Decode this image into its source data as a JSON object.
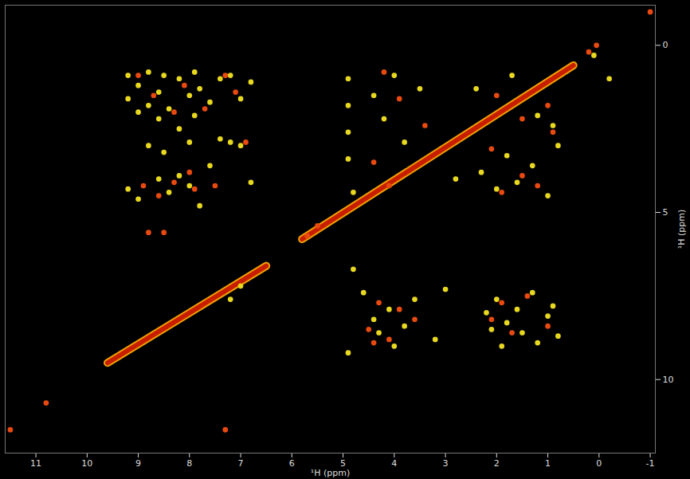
{
  "chart_data": {
    "type": "scatter",
    "x_label": "¹H (ppm)",
    "y_label": "¹H (ppm)",
    "xlim": [
      11.6,
      -1.1
    ],
    "ylim": [
      12.2,
      -1.2
    ],
    "xticks": [
      11,
      10,
      9,
      8,
      7,
      6,
      5,
      4,
      3,
      2,
      1,
      0,
      -1
    ],
    "yticks": [
      0,
      5,
      10
    ],
    "grid": false,
    "series": [
      {
        "type": "line",
        "color": "#c81e00",
        "line_style": "solid",
        "x": [
          9.6,
          6.5,
          null,
          5.8,
          0.5
        ],
        "values": [
          9.5,
          6.6,
          null,
          5.8,
          0.6
        ]
      },
      {
        "type": "scatter",
        "color": "#e8d820",
        "marker": "circle",
        "x": [
          9.2,
          9.2,
          9.2,
          9.0,
          9.0,
          9.0,
          8.8,
          8.8,
          8.8,
          8.6,
          8.6,
          8.6,
          8.5,
          8.5,
          8.4,
          8.4,
          8.2,
          8.2,
          8.2,
          8.0,
          8.0,
          8.0,
          7.9,
          7.9,
          7.8,
          7.8,
          7.6,
          7.6,
          7.4,
          7.4,
          7.2,
          7.2,
          7.0,
          7.0,
          6.8,
          6.8,
          4.6,
          4.4,
          4.3,
          4.1,
          4.0,
          3.8,
          3.6,
          3.2,
          3.0,
          2.2,
          2.1,
          2.0,
          1.9,
          1.8,
          1.6,
          1.5,
          1.3,
          1.2,
          1.0,
          0.9,
          0.8,
          4.8,
          4.9,
          4.9,
          4.9,
          4.9,
          4.9,
          4.8,
          4.4,
          4.2,
          4.0,
          3.8,
          3.5,
          2.8,
          2.3,
          2.0,
          1.8,
          1.6,
          1.3,
          1.0,
          0.8,
          2.4,
          1.7,
          1.2,
          0.9,
          -0.2,
          0.1,
          7.2,
          7.0
        ],
        "values": [
          0.9,
          1.6,
          4.3,
          1.2,
          2.0,
          4.6,
          0.8,
          1.8,
          3.0,
          1.4,
          2.2,
          4.0,
          0.9,
          3.2,
          1.9,
          4.4,
          1.0,
          2.5,
          3.9,
          1.5,
          2.9,
          4.2,
          0.8,
          2.1,
          1.3,
          4.8,
          1.7,
          3.6,
          1.0,
          2.8,
          0.9,
          2.9,
          1.6,
          3.0,
          1.1,
          4.1,
          7.4,
          8.2,
          8.6,
          7.9,
          9.0,
          8.4,
          7.6,
          8.8,
          7.3,
          8.0,
          8.5,
          7.6,
          9.0,
          8.3,
          7.9,
          8.6,
          7.4,
          8.9,
          8.1,
          7.8,
          8.7,
          6.7,
          9.2,
          1.0,
          1.8,
          2.6,
          3.4,
          4.4,
          1.5,
          2.2,
          0.9,
          2.9,
          1.3,
          4.0,
          3.8,
          4.3,
          3.3,
          4.1,
          3.6,
          4.5,
          3.0,
          1.3,
          0.9,
          2.1,
          2.4,
          1.0,
          0.3,
          7.6,
          7.2
        ]
      },
      {
        "type": "scatter",
        "color": "#e84a10",
        "marker": "circle",
        "x": [
          9.0,
          8.9,
          8.7,
          8.6,
          8.3,
          8.3,
          8.1,
          8.0,
          7.9,
          7.7,
          7.5,
          7.3,
          7.1,
          6.9,
          8.8,
          8.5,
          4.5,
          4.3,
          4.1,
          3.9,
          2.1,
          1.9,
          1.7,
          1.4,
          1.0,
          4.4,
          3.6,
          4.2,
          3.9,
          2.1,
          1.9,
          1.5,
          1.2,
          2.0,
          1.5,
          1.0,
          0.9,
          3.4,
          4.4,
          4.1,
          11.5,
          10.8,
          0.2,
          0.05,
          -1.0,
          5.7,
          5.5,
          7.3
        ],
        "values": [
          0.9,
          4.2,
          1.5,
          4.5,
          2.0,
          4.1,
          1.2,
          3.8,
          4.3,
          1.9,
          4.2,
          0.9,
          1.4,
          2.9,
          5.6,
          5.6,
          8.5,
          7.7,
          8.8,
          7.9,
          8.2,
          7.7,
          8.6,
          7.5,
          8.4,
          8.9,
          8.2,
          0.8,
          1.6,
          3.1,
          4.4,
          3.9,
          4.2,
          1.5,
          2.2,
          1.8,
          2.6,
          2.4,
          3.5,
          4.2,
          11.5,
          10.7,
          0.2,
          0.0,
          -1.0,
          5.7,
          5.4,
          11.5
        ]
      }
    ]
  }
}
